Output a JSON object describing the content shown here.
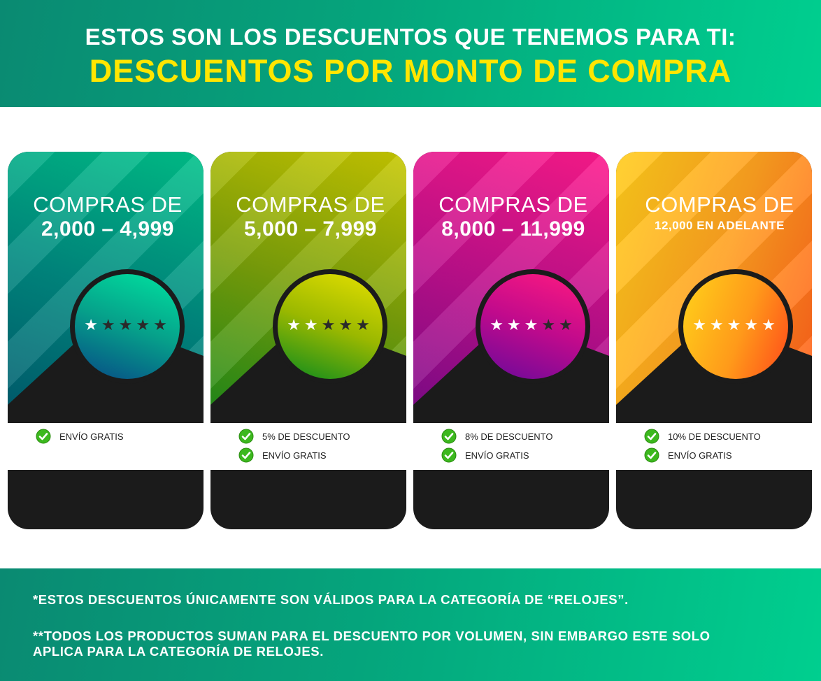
{
  "header": {
    "subtitle": "ESTOS SON LOS DESCUENTOS QUE TENEMOS PARA TI:",
    "title": "DESCUENTOS POR MONTO DE COMPRA"
  },
  "cards": [
    {
      "label": "COMPRAS DE",
      "range": "2,000 – 4,999",
      "rating": 1,
      "max_rating": 5,
      "stars_on": "★",
      "stars_off": "★★★★",
      "features": [
        "ENVÍO GRATIS"
      ],
      "colors": {
        "top_a": "#00c28a",
        "top_b": "#005a6e",
        "disc_a": "#00e3a0",
        "disc_b": "#074a86"
      }
    },
    {
      "label": "COMPRAS DE",
      "range": "5,000 – 7,999",
      "rating": 2,
      "max_rating": 5,
      "stars_on": "★★",
      "stars_off": "★★★",
      "features": [
        "5% DE DESCUENTO",
        "ENVÍO GRATIS"
      ],
      "colors": {
        "top_a": "#c8c800",
        "top_b": "#1a8a1a",
        "disc_a": "#e6e000",
        "disc_b": "#0a8a1e"
      }
    },
    {
      "label": "COMPRAS DE",
      "range": "8,000 – 11,999",
      "rating": 3,
      "max_rating": 5,
      "stars_on": "★★★",
      "stars_off": "★★",
      "features": [
        "8% DE DESCUENTO",
        "ENVÍO GRATIS"
      ],
      "colors": {
        "top_a": "#ff1a8c",
        "top_b": "#7a0a8a",
        "disc_a": "#ff1a80",
        "disc_b": "#6a0a9a"
      }
    },
    {
      "label": "COMPRAS DE",
      "range": "12,000 EN ADELANTE",
      "rating": 5,
      "max_rating": 5,
      "stars_on": "★★★★★",
      "stars_off": "",
      "features": [
        "10% DE DESCUENTO",
        "ENVÍO GRATIS"
      ],
      "colors": {
        "top_a": "#ffcc1a",
        "top_b": "#ff5a1a",
        "disc_a": "#ffd21a",
        "disc_b": "#ff4a1a"
      }
    }
  ],
  "footer": {
    "note1": "*ESTOS DESCUENTOS ÚNICAMENTE SON VÁLIDOS PARA LA CATEGORÍA DE “RELOJES”.",
    "note2": "**TODOS LOS PRODUCTOS SUMAN PARA EL DESCUENTO POR VOLUMEN, SIN EMBARGO ESTE SOLO APLICA PARA LA CATEGORÍA DE RELOJES."
  },
  "icons": {
    "check": "check-circle-icon",
    "star": "star-icon"
  },
  "brand_colors": {
    "header_green": "#05a57c",
    "title_yellow": "#ffe600",
    "card_dark": "#1b1b1b",
    "check_green": "#3cb81e"
  }
}
